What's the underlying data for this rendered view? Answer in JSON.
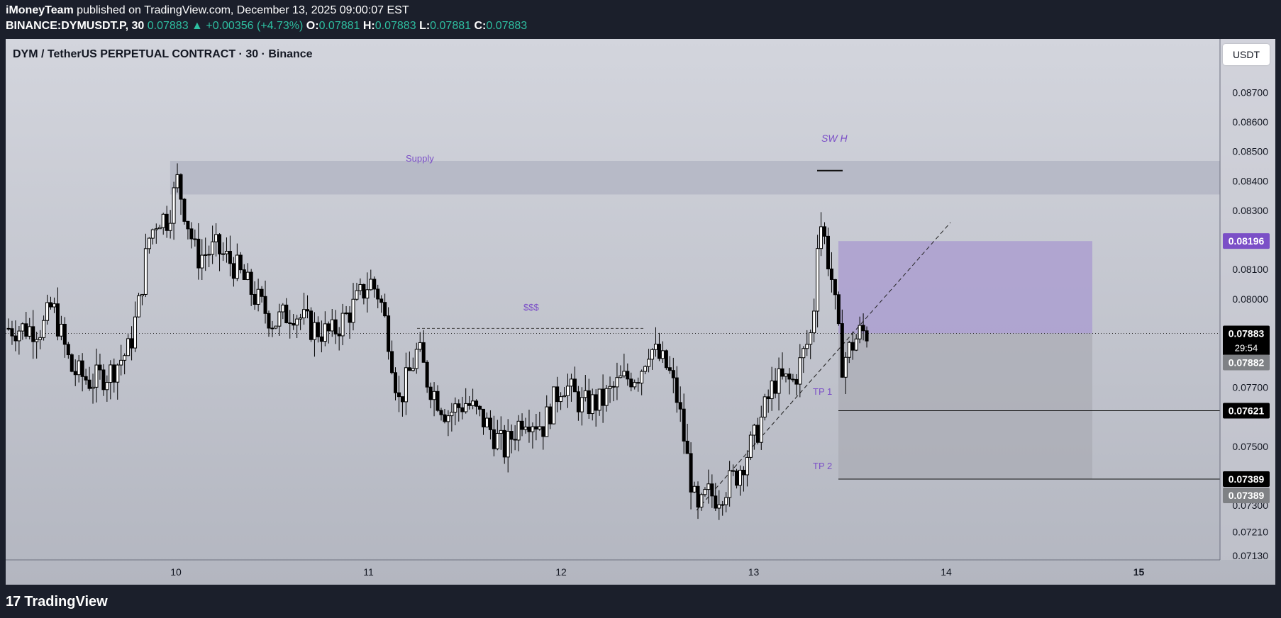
{
  "header": {
    "publisher": "iMoneyTeam",
    "published_text": " published on TradingView.com, December 13, 2025 09:00:07 EST",
    "symbol": "BINANCE:DYMUSDT.P, 30",
    "last": "0.07883",
    "change_arrow": "▲",
    "change": "+0.00356 (+4.73%)",
    "o_label": "O:",
    "o": "0.07881",
    "h_label": "H:",
    "h": "0.07883",
    "l_label": "L:",
    "l": "0.07881",
    "c_label": "C:",
    "c": "0.07883"
  },
  "chart_title": "DYM / TetherUS PERPETUAL CONTRACT · 30 · Binance",
  "currency_button": "USDT",
  "footer": {
    "logo_text": "TradingView",
    "logo_mark": "17"
  },
  "colors": {
    "supply_zone": "#b0b3c2",
    "target_zone": "#ab9fd0",
    "stop_zone": "#a9abb4",
    "annotation": "#7b4fc7",
    "candle": "#000000",
    "price_label_bg": "#000000",
    "purple_label_bg": "#7b4fc7",
    "grey_label_bg": "#7f8185"
  },
  "chart_data": {
    "type": "candlestick",
    "timeframe": "30",
    "x_ticks": [
      "10",
      "11",
      "12",
      "13",
      "14",
      "15"
    ],
    "y_ticks": [
      "0.08700",
      "0.08600",
      "0.08500",
      "0.08400",
      "0.08300",
      "0.08100",
      "0.08000",
      "0.07700",
      "0.07500",
      "0.07300",
      "0.07210",
      "0.07130"
    ],
    "ylim": [
      0.0712,
      0.0885
    ],
    "price_labels": [
      {
        "value": "0.08196",
        "style": "purple"
      },
      {
        "value": "0.07883",
        "style": "black",
        "countdown": "29:54"
      },
      {
        "value": "0.07882",
        "style": "grey"
      },
      {
        "value": "0.07621",
        "style": "black"
      },
      {
        "value": "0.07389",
        "style": "black"
      },
      {
        "value": "0.07389",
        "style": "grey"
      }
    ],
    "annotations": {
      "supply_label": "Supply",
      "liquidity_label": "$$$",
      "swing_high_label": "SW H",
      "tp1_label": "TP 1",
      "tp2_label": "TP 2"
    },
    "zones": {
      "supply": [
        0.08354,
        0.08468
      ],
      "target": [
        0.07883,
        0.08196
      ],
      "stop": [
        0.07389,
        0.07883
      ]
    },
    "levels": {
      "current": 0.07883,
      "liquidity": 0.079,
      "tp1": 0.07621,
      "tp2": 0.07389,
      "swing_high": 0.08435
    },
    "day_positions": {
      "9": -0.1
    },
    "candles_close_path": [
      [
        9.3,
        0.079
      ],
      [
        9.35,
        0.0798
      ],
      [
        9.45,
        0.0776
      ],
      [
        9.55,
        0.0772
      ],
      [
        9.65,
        0.0775
      ],
      [
        9.75,
        0.0783
      ],
      [
        9.8,
        0.0798
      ],
      [
        9.85,
        0.082
      ],
      [
        9.9,
        0.0828
      ],
      [
        9.95,
        0.0827
      ],
      [
        10.0,
        0.084
      ],
      [
        10.05,
        0.0827
      ],
      [
        10.1,
        0.0814
      ],
      [
        10.2,
        0.0817
      ],
      [
        10.3,
        0.0811
      ],
      [
        10.4,
        0.0801
      ],
      [
        10.5,
        0.0792
      ],
      [
        10.6,
        0.0796
      ],
      [
        10.7,
        0.079
      ],
      [
        10.8,
        0.0788
      ],
      [
        10.9,
        0.0796
      ],
      [
        11.0,
        0.0806
      ],
      [
        11.05,
        0.0801
      ],
      [
        11.1,
        0.0786
      ],
      [
        11.15,
        0.0765
      ],
      [
        11.25,
        0.0783
      ],
      [
        11.3,
        0.0772
      ],
      [
        11.4,
        0.0761
      ],
      [
        11.5,
        0.0765
      ],
      [
        11.6,
        0.0758
      ],
      [
        11.7,
        0.0749
      ],
      [
        11.8,
        0.0761
      ],
      [
        11.9,
        0.0757
      ],
      [
        12.0,
        0.0772
      ],
      [
        12.1,
        0.0764
      ],
      [
        12.2,
        0.0765
      ],
      [
        12.3,
        0.0772
      ],
      [
        12.4,
        0.0775
      ],
      [
        12.45,
        0.0784
      ],
      [
        12.55,
        0.0776
      ],
      [
        12.6,
        0.0765
      ],
      [
        12.65,
        0.0745
      ],
      [
        12.7,
        0.0726
      ],
      [
        12.75,
        0.0734
      ],
      [
        12.8,
        0.0733
      ],
      [
        12.9,
        0.074
      ],
      [
        13.0,
        0.0753
      ],
      [
        13.1,
        0.0772
      ],
      [
        13.2,
        0.0772
      ],
      [
        13.3,
        0.079
      ],
      [
        13.33,
        0.0828
      ],
      [
        13.35,
        0.0824
      ],
      [
        13.4,
        0.0806
      ],
      [
        13.45,
        0.0778
      ],
      [
        13.5,
        0.0784
      ],
      [
        13.55,
        0.0789
      ],
      [
        13.6,
        0.0788
      ]
    ]
  }
}
